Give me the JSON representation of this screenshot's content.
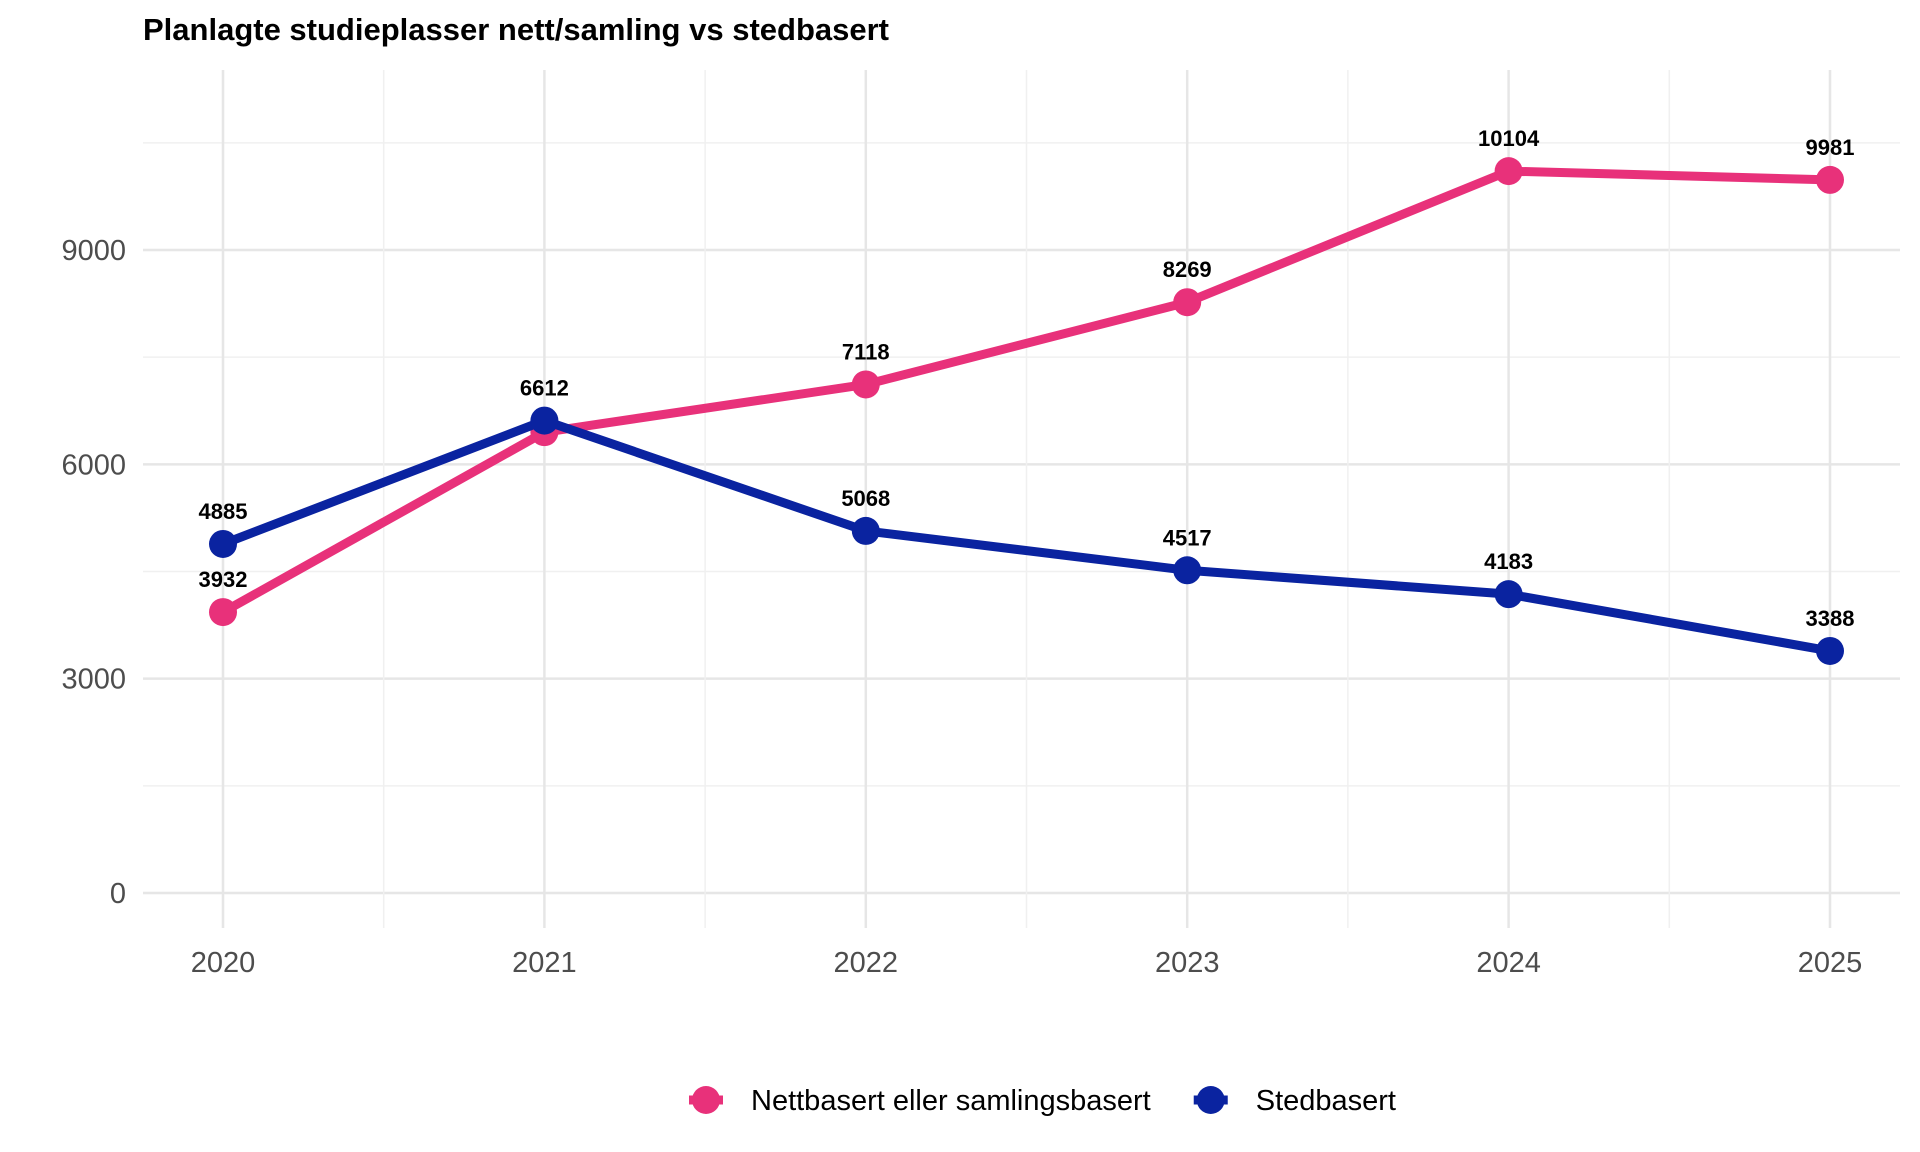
{
  "chart_data": {
    "type": "line",
    "title": "Planlagte studieplasser nett/samling vs stedbasert",
    "xlabel": "",
    "ylabel": "",
    "x": [
      "2020",
      "2021",
      "2022",
      "2023",
      "2024",
      "2025"
    ],
    "y_ticks": [
      "0",
      "3000",
      "6000",
      "9000"
    ],
    "ylim": [
      -500,
      11800
    ],
    "grid": true,
    "legend_position": "bottom",
    "series": [
      {
        "name": "Nettbasert eller samlingsbasert",
        "color": "#E8317A",
        "values": [
          3932,
          6450,
          7118,
          8269,
          10104,
          9981
        ],
        "labels": [
          "3932",
          "",
          "7118",
          "8269",
          "10104",
          "9981"
        ]
      },
      {
        "name": "Stedbasert",
        "color": "#0A23A0",
        "values": [
          4885,
          6612,
          5068,
          4517,
          4183,
          3388
        ],
        "labels": [
          "4885",
          "6612",
          "5068",
          "4517",
          "4183",
          "3388"
        ]
      }
    ]
  }
}
